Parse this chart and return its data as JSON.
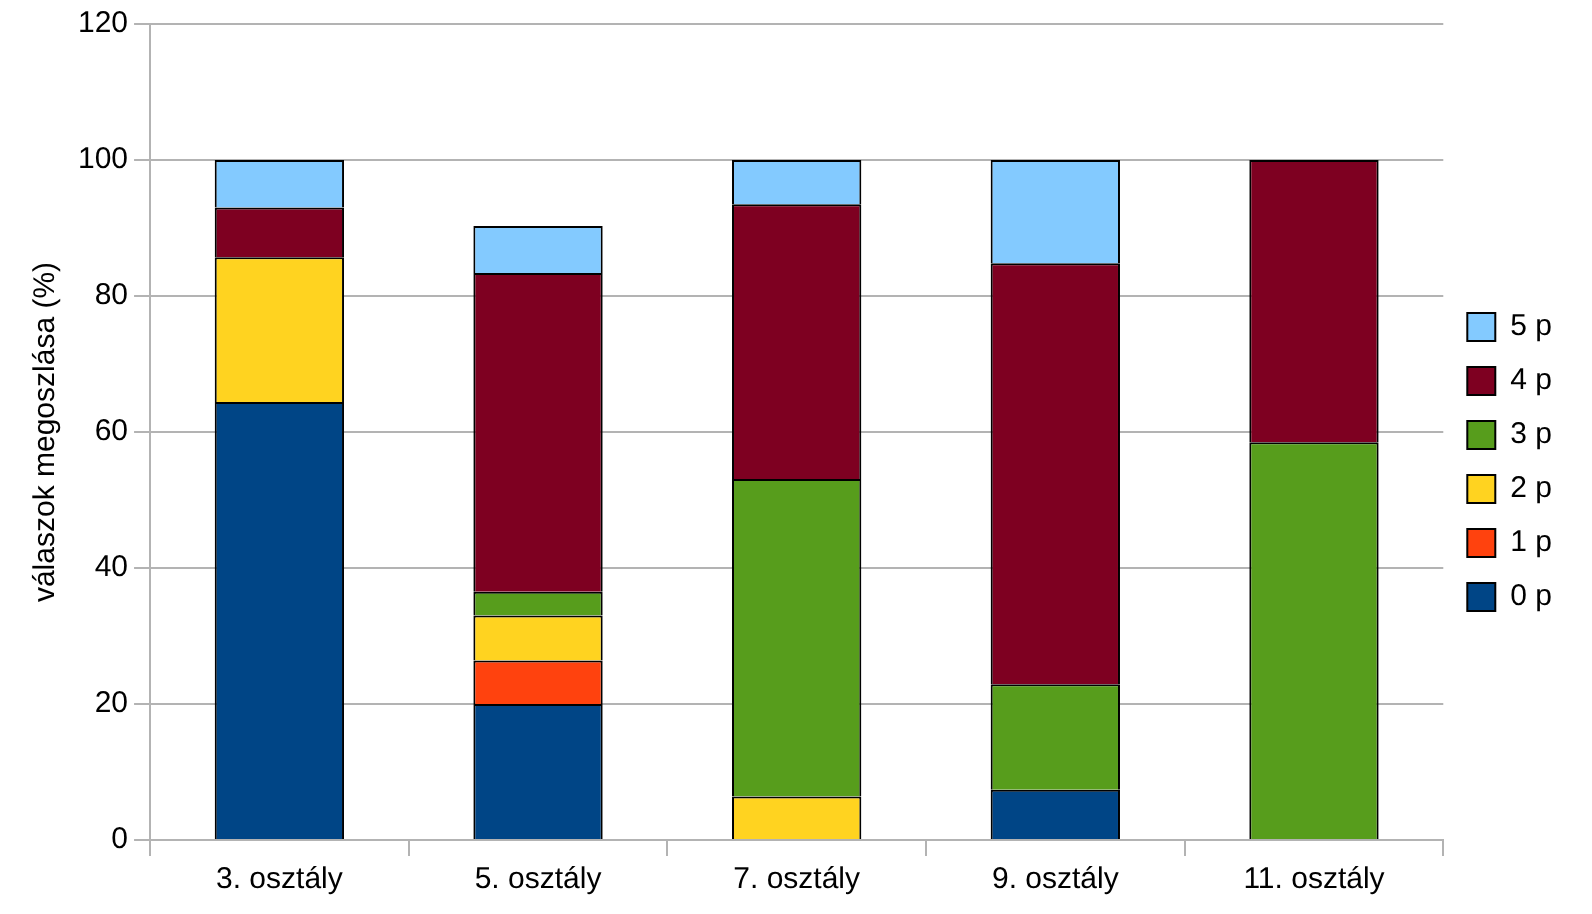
{
  "chart_data": {
    "type": "bar",
    "stacked": true,
    "ylabel": "válaszok megoszlása (%)",
    "categories": [
      "3. osztály",
      "5. osztály",
      "7. osztály",
      "9. osztály",
      "11. osztály"
    ],
    "series": [
      {
        "name": "0 p",
        "color": "#004586",
        "values": [
          64.4,
          20,
          0,
          7.4,
          0
        ]
      },
      {
        "name": "1 p",
        "color": "#ff420e",
        "values": [
          0,
          6.4,
          0,
          0,
          0
        ]
      },
      {
        "name": "2 p",
        "color": "#ffd320",
        "values": [
          21.3,
          6.6,
          6.4,
          0,
          0
        ]
      },
      {
        "name": "3 p",
        "color": "#579d1c",
        "values": [
          0,
          3.5,
          46.7,
          15.5,
          58.5
        ]
      },
      {
        "name": "4 p",
        "color": "#7e0021",
        "values": [
          7.3,
          46.9,
          40.4,
          61.9,
          41.5
        ]
      },
      {
        "name": "5 p",
        "color": "#83caff",
        "values": [
          7,
          6.9,
          6.5,
          15.2,
          0
        ]
      }
    ],
    "ylim": [
      0,
      120
    ],
    "yticks": [
      0,
      20,
      40,
      60,
      80,
      100,
      120
    ],
    "grid": "y",
    "legend": "right"
  }
}
